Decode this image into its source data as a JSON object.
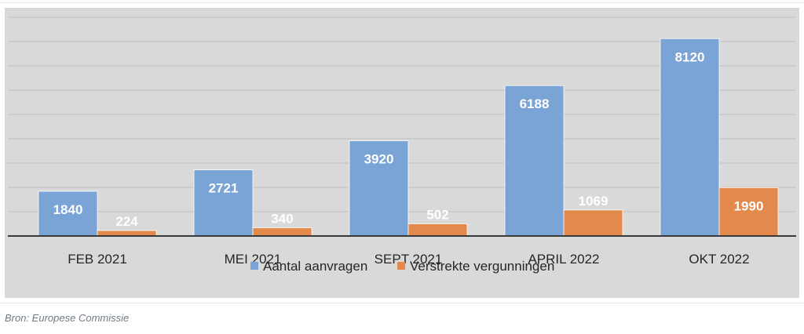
{
  "chart_data": {
    "type": "bar",
    "categories": [
      "FEB 2021",
      "MEI 2021",
      "SEPT 2021",
      "APRIL 2022",
      "OKT 2022"
    ],
    "series": [
      {
        "name": "Aantal aanvragen",
        "values": [
          1840,
          2721,
          3920,
          6188,
          8120
        ],
        "color": "#7aa3d6"
      },
      {
        "name": "Verstrekte vergunningen",
        "values": [
          224,
          340,
          502,
          1069,
          1990
        ],
        "color": "#e2894b"
      }
    ],
    "ylim": [
      0,
      9000
    ],
    "grid": true,
    "legend": "bottom"
  },
  "source": "Bron: Europese Commissie",
  "colors": {
    "background": "#d9d9d9",
    "gridline": "#bfbfbf",
    "axis": "#3a3a3a"
  }
}
